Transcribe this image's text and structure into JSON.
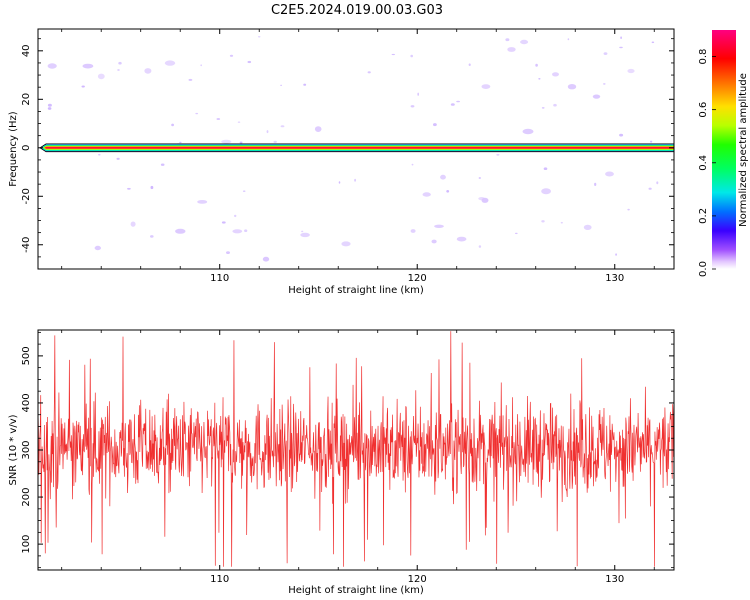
{
  "title": "C2E5.2024.019.00.03.G03",
  "chart_data": [
    {
      "type": "heatmap",
      "xlabel": "Height of straight line (km)",
      "ylabel": "Frequency (Hz)",
      "xlim": [
        100.8,
        133.0
      ],
      "ylim": [
        -50,
        49
      ],
      "xticks": [
        110,
        120,
        130
      ],
      "yticks": [
        -40,
        -20,
        0,
        20,
        40
      ],
      "band": {
        "frequency": 0,
        "half_width": 1.6,
        "normalized_amplitude": 1.0
      },
      "colorbar": {
        "label": "Normalized spectral amplitude",
        "ticks": [
          0.0,
          0.2,
          0.4,
          0.6,
          0.8
        ],
        "range": [
          0.0,
          0.9
        ]
      }
    },
    {
      "type": "line",
      "xlabel": "Height of straight line (km)",
      "ylabel": "SNR (10 * v/v)",
      "xlim": [
        100.8,
        133.0
      ],
      "ylim": [
        45,
        555
      ],
      "xticks": [
        110,
        120,
        130
      ],
      "yticks": [
        100,
        200,
        300,
        400,
        500
      ],
      "series": [
        {
          "color": "#f03030",
          "mean": 305,
          "typical_range": [
            210,
            410
          ],
          "extremes": [
            52,
            555
          ]
        }
      ]
    }
  ]
}
